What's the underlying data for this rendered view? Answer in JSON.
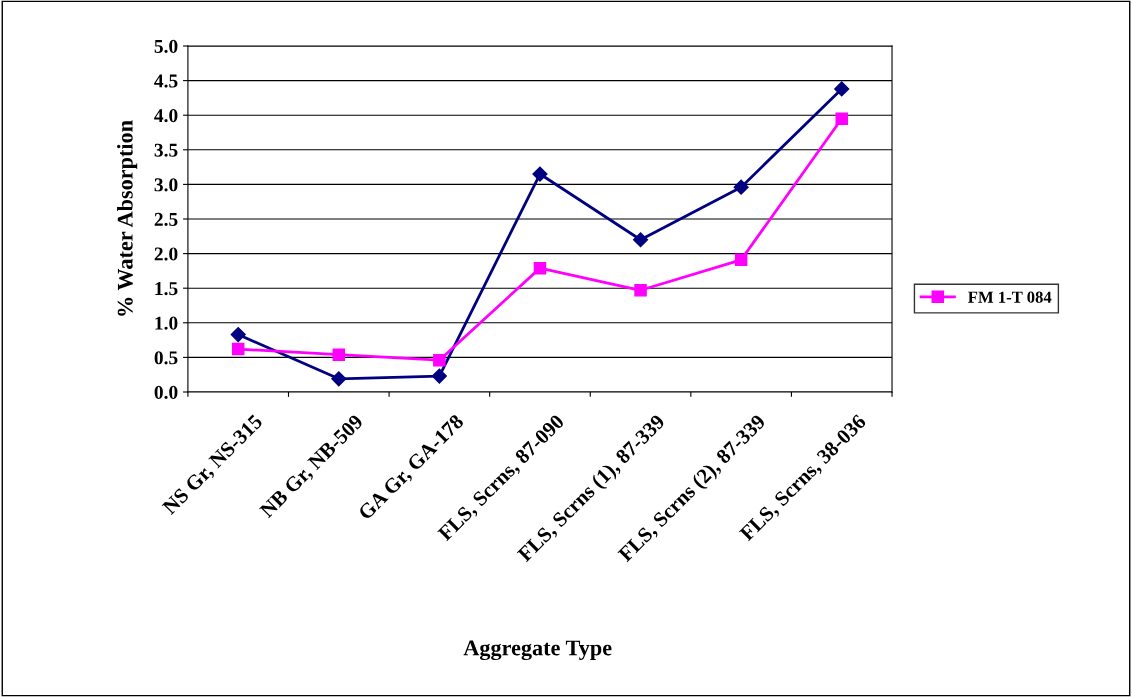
{
  "chart_data": {
    "type": "line",
    "xlabel": "Aggregate Type",
    "ylabel": "% Water Absorption",
    "categories": [
      "NS Gr, NS-315",
      "NB Gr, NB-509",
      "GA Gr, GA-178",
      "FLS, Scrns, 87-090",
      "FLS, Scrns (1), 87-339",
      "FLS, Scrns (2), 87-339",
      "FLS, Scrns, 38-036"
    ],
    "series": [
      {
        "color": "#000080",
        "marker": "diamond",
        "values": [
          0.83,
          0.19,
          0.23,
          3.15,
          2.2,
          2.96,
          4.38
        ]
      },
      {
        "name": "FM 1-T 084",
        "color": "#ff00ff",
        "marker": "square",
        "values": [
          0.62,
          0.54,
          0.46,
          1.79,
          1.47,
          1.91,
          3.95
        ]
      }
    ],
    "ylim": [
      0,
      5
    ],
    "yticks": [
      {
        "value": 0,
        "label": "0.0"
      },
      {
        "value": 0.5,
        "label": "0.5"
      },
      {
        "value": 1,
        "label": "1.0"
      },
      {
        "value": 1.5,
        "label": "1.5"
      },
      {
        "value": 2,
        "label": "2.0"
      },
      {
        "value": 2.5,
        "label": "2.5"
      },
      {
        "value": 3,
        "label": "3.0"
      },
      {
        "value": 3.5,
        "label": "3.5"
      },
      {
        "value": 4,
        "label": "4.0"
      },
      {
        "value": 4.5,
        "label": "4.5"
      },
      {
        "value": 5,
        "label": "5.0"
      }
    ],
    "grid": "y",
    "legend": "right",
    "line_style": "solid"
  }
}
